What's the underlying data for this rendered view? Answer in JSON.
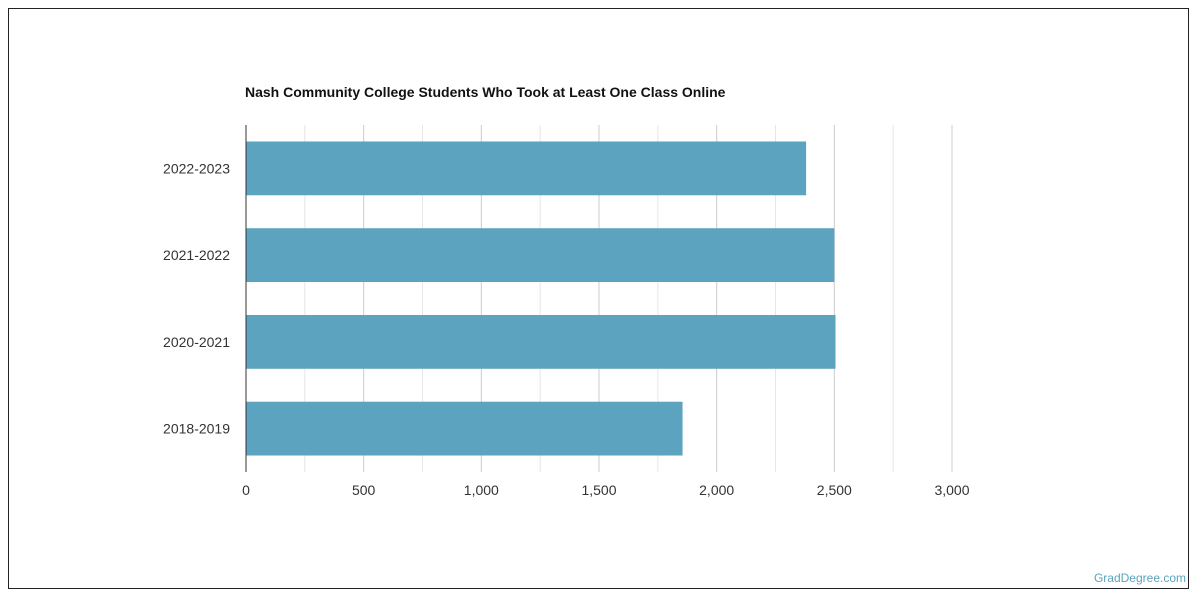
{
  "chart_data": {
    "type": "bar",
    "orientation": "horizontal",
    "title": "Nash Community College Students Who Took at Least One Class Online",
    "categories": [
      "2022-2023",
      "2021-2022",
      "2020-2021",
      "2018-2019"
    ],
    "values": [
      2380,
      2500,
      2505,
      1855
    ],
    "xlim": [
      0,
      3000
    ],
    "xticks": [
      0,
      500,
      1000,
      1500,
      2000,
      2500,
      3000
    ],
    "xtick_labels": [
      "0",
      "500",
      "1,000",
      "1,500",
      "2,000",
      "2,500",
      "3,000"
    ],
    "grid": true,
    "bar_color": "#5ba3bf"
  },
  "watermark": "GradDegree.com"
}
